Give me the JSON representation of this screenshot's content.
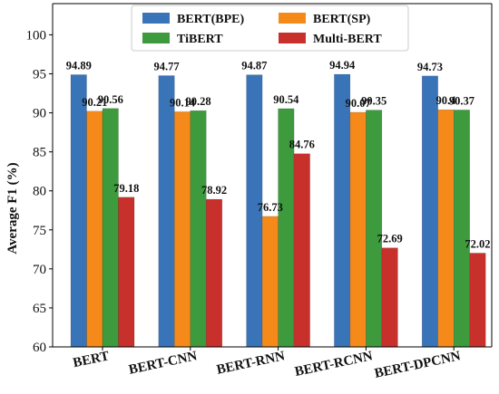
{
  "chart_data": {
    "type": "bar",
    "title": "",
    "xlabel": "",
    "ylabel": "Average F1 (%)",
    "ylim": [
      60,
      104
    ],
    "yticks": [
      60,
      65,
      70,
      75,
      80,
      85,
      90,
      95,
      100
    ],
    "grid": false,
    "legend_position": "top-center",
    "categories": [
      "BERT",
      "BERT-CNN",
      "BERT-RNN",
      "BERT-RCNN",
      "BERT-DPCNN"
    ],
    "series": [
      {
        "name": "BERT(BPE)",
        "color": "#3a74b8",
        "values": [
          94.89,
          94.77,
          94.87,
          94.94,
          94.73
        ],
        "labels": [
          "94.89",
          "94.77",
          "94.87",
          "94.94",
          "94.73"
        ]
      },
      {
        "name": "BERT(SP)",
        "color": "#f58a1a",
        "values": [
          90.21,
          90.14,
          76.73,
          90.07,
          90.4
        ],
        "labels": [
          "90.21",
          "90.14",
          "76.73",
          "90.07",
          "90.4"
        ]
      },
      {
        "name": "TiBERT",
        "color": "#3d9a3d",
        "values": [
          90.56,
          90.28,
          90.54,
          90.35,
          90.37
        ],
        "labels": [
          "90.56",
          "90.28",
          "90.54",
          "90.35",
          "90.37"
        ]
      },
      {
        "name": "Multi-BERT",
        "color": "#c8302c",
        "values": [
          79.18,
          78.92,
          84.76,
          72.69,
          72.02
        ],
        "labels": [
          "79.18",
          "78.92",
          "84.76",
          "72.69",
          "72.02"
        ]
      }
    ]
  }
}
